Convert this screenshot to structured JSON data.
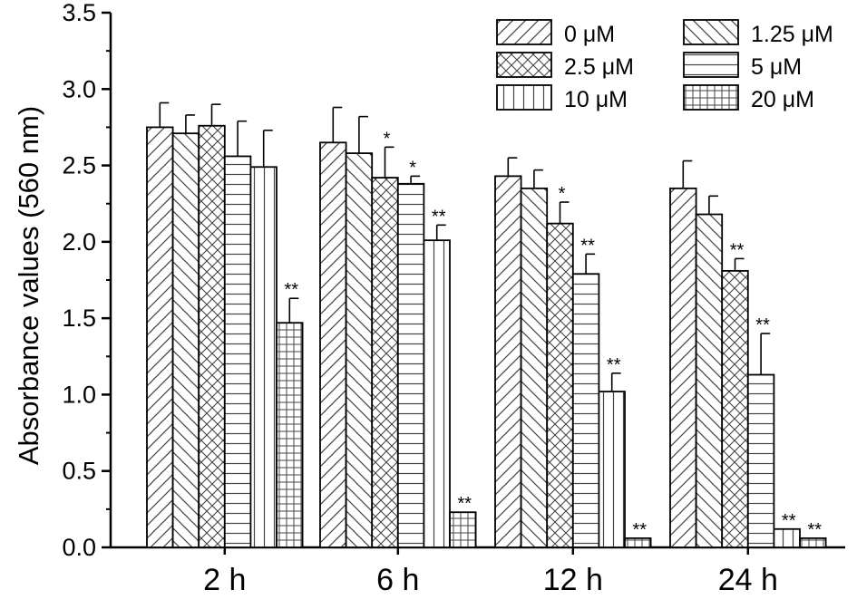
{
  "chart_data": {
    "type": "bar",
    "title": "",
    "xlabel": "",
    "ylabel": "Absorbance values (560 nm)",
    "ylim": [
      0,
      3.5
    ],
    "yticks": [
      "0.0",
      "0.5",
      "1.0",
      "1.5",
      "2.0",
      "2.5",
      "3.0",
      "3.5"
    ],
    "categories": [
      "2 h",
      "6 h",
      "12 h",
      "24 h"
    ],
    "legend_position": "top-right",
    "series": [
      {
        "name": "0 μM",
        "pattern": "diag-up",
        "values": [
          2.75,
          2.65,
          2.43,
          2.35
        ],
        "errors": [
          0.16,
          0.23,
          0.12,
          0.18
        ],
        "sig": [
          "",
          "",
          "",
          ""
        ]
      },
      {
        "name": "1.25 μM",
        "pattern": "diag-down",
        "values": [
          2.71,
          2.58,
          2.35,
          2.18
        ],
        "errors": [
          0.12,
          0.24,
          0.12,
          0.12
        ],
        "sig": [
          "",
          "",
          "",
          ""
        ]
      },
      {
        "name": "2.5 μM",
        "pattern": "crosshatch",
        "values": [
          2.76,
          2.42,
          2.12,
          1.81
        ],
        "errors": [
          0.14,
          0.2,
          0.14,
          0.08
        ],
        "sig": [
          "",
          "*",
          "*",
          "**"
        ]
      },
      {
        "name": "5 μM",
        "pattern": "horizontal",
        "values": [
          2.56,
          2.38,
          1.79,
          1.13
        ],
        "errors": [
          0.23,
          0.05,
          0.13,
          0.27
        ],
        "sig": [
          "",
          "*",
          "**",
          "**"
        ]
      },
      {
        "name": "10 μM",
        "pattern": "vertical",
        "values": [
          2.49,
          2.01,
          1.02,
          0.12
        ],
        "errors": [
          0.24,
          0.1,
          0.12,
          0.0
        ],
        "sig": [
          "",
          "**",
          "**",
          "**"
        ]
      },
      {
        "name": "20 μM",
        "pattern": "grid",
        "values": [
          1.47,
          0.23,
          0.06,
          0.06
        ],
        "errors": [
          0.16,
          0.0,
          0.0,
          0.0
        ],
        "sig": [
          "**",
          "**",
          "**",
          "**"
        ]
      }
    ]
  }
}
